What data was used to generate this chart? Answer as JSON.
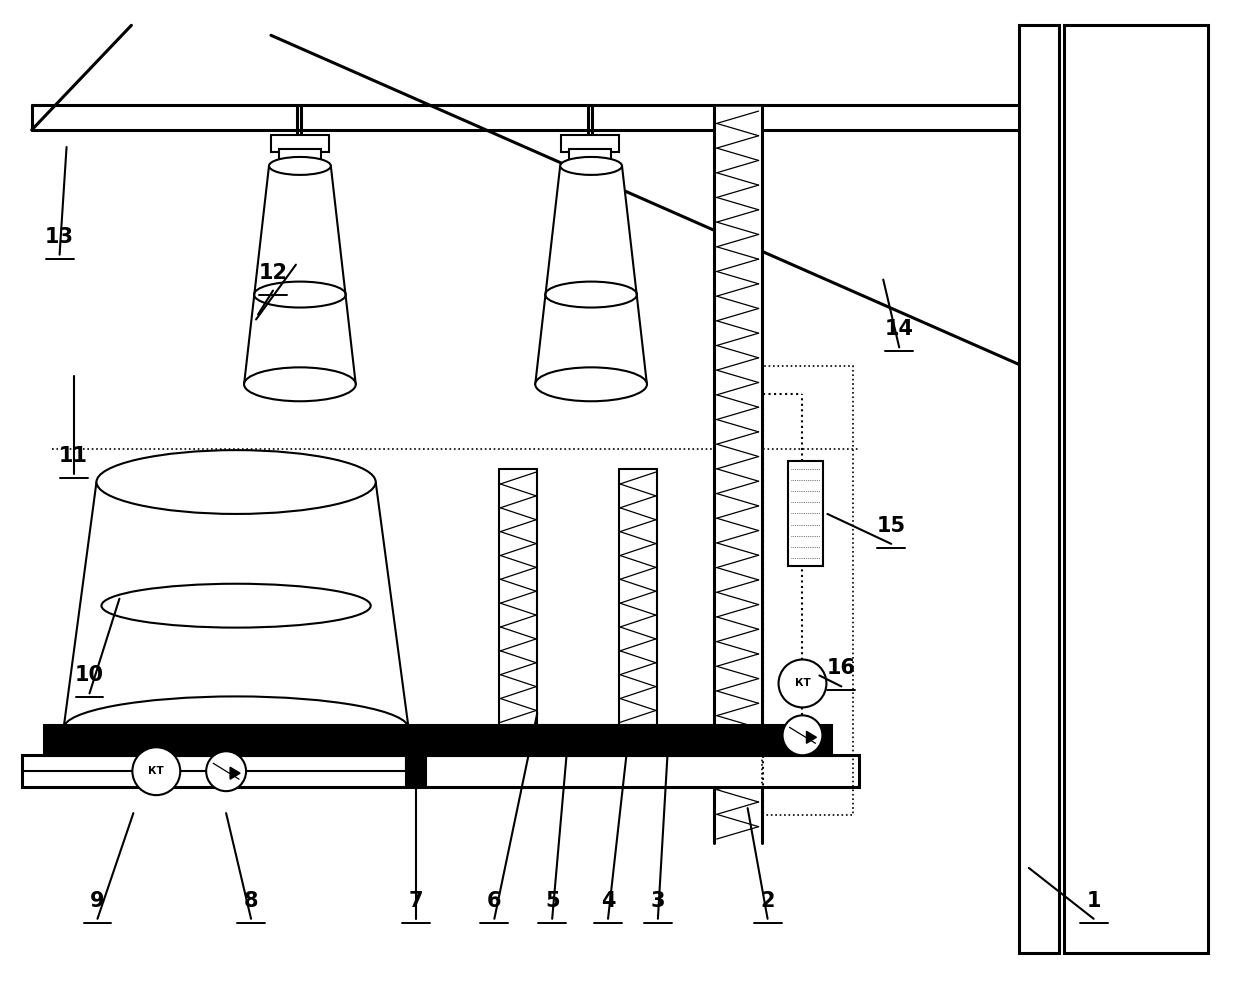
{
  "fig_width": 12.4,
  "fig_height": 9.84,
  "dpi": 100,
  "bg_color": "#ffffff",
  "lc": "#000000"
}
